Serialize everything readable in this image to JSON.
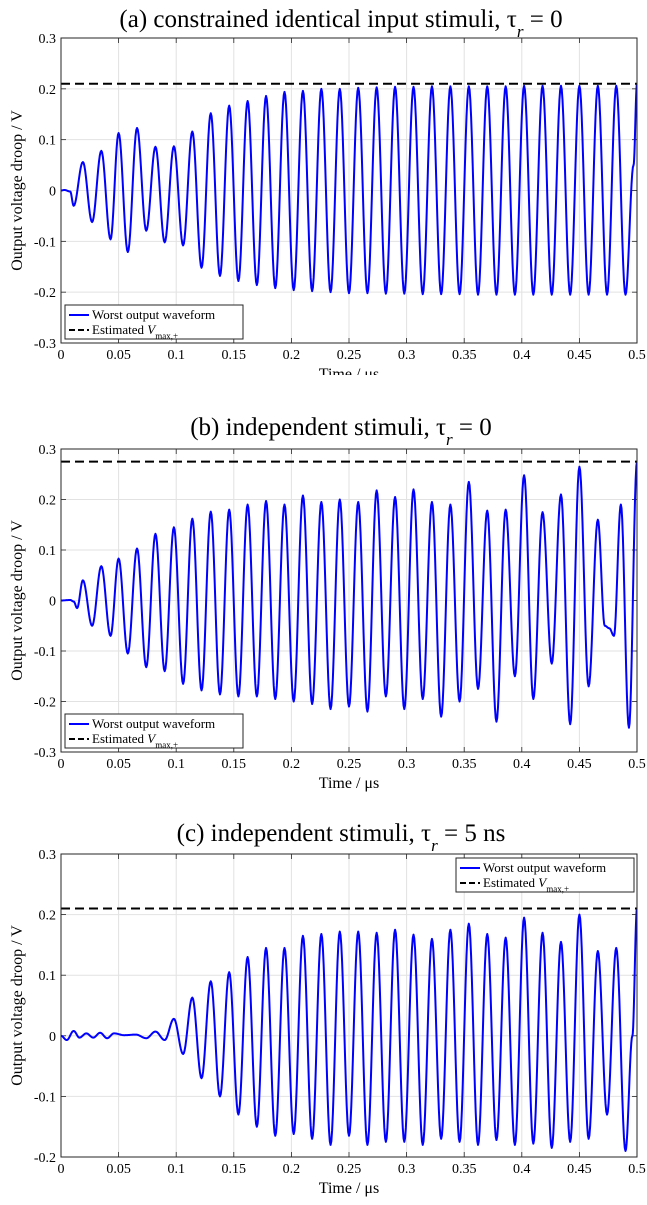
{
  "chart_data": [
    {
      "type": "line",
      "panel": "a",
      "title": "(a) constrained identical input stimuli, τ",
      "title_sub": "r",
      "title_tail": " = 0",
      "xlabel": "Time / μs",
      "ylabel": "Output voltage droop / V",
      "xlim": [
        0,
        0.5
      ],
      "ylim": [
        -0.3,
        0.3
      ],
      "xticks": [
        "0",
        "0.05",
        "0.1",
        "0.15",
        "0.2",
        "0.25",
        "0.3",
        "0.35",
        "0.4",
        "0.45",
        "0.5"
      ],
      "yticks": [
        "-0.3",
        "-0.2",
        "-0.1",
        "0",
        "0.1",
        "0.2",
        "0.3"
      ],
      "grid": true,
      "legend_position": "bottom-left",
      "estimate": 0.21,
      "series": [
        {
          "name": "Worst output waveform",
          "color": "#0000ff",
          "style": "solid",
          "peaks": [
            [
              0,
              0
            ],
            [
              0.003,
              0.001
            ],
            [
              0.008,
              -0.002
            ],
            [
              0.011,
              -0.03
            ],
            [
              0.019,
              0.056
            ],
            [
              0.027,
              -0.062
            ],
            [
              0.035,
              0.078
            ],
            [
              0.043,
              -0.096
            ],
            [
              0.05,
              0.113
            ],
            [
              0.058,
              -0.121
            ],
            [
              0.066,
              0.123
            ],
            [
              0.074,
              -0.079
            ],
            [
              0.082,
              0.086
            ],
            [
              0.09,
              -0.102
            ],
            [
              0.098,
              0.087
            ],
            [
              0.106,
              -0.108
            ],
            [
              0.114,
              0.116
            ],
            [
              0.122,
              -0.152
            ],
            [
              0.13,
              0.152
            ],
            [
              0.138,
              -0.168
            ],
            [
              0.146,
              0.167
            ],
            [
              0.154,
              -0.178
            ],
            [
              0.162,
              0.176
            ],
            [
              0.17,
              -0.186
            ],
            [
              0.178,
              0.186
            ],
            [
              0.186,
              -0.192
            ],
            [
              0.194,
              0.194
            ],
            [
              0.202,
              -0.196
            ],
            [
              0.21,
              0.196
            ],
            [
              0.218,
              -0.198
            ],
            [
              0.226,
              0.2
            ],
            [
              0.234,
              -0.2
            ],
            [
              0.242,
              0.2
            ],
            [
              0.25,
              -0.202
            ],
            [
              0.258,
              0.202
            ],
            [
              0.266,
              -0.202
            ],
            [
              0.274,
              0.203
            ],
            [
              0.282,
              -0.203
            ],
            [
              0.29,
              0.204
            ],
            [
              0.298,
              -0.203
            ],
            [
              0.306,
              0.204
            ],
            [
              0.314,
              -0.204
            ],
            [
              0.322,
              0.205
            ],
            [
              0.33,
              -0.204
            ],
            [
              0.338,
              0.205
            ],
            [
              0.346,
              -0.204
            ],
            [
              0.354,
              0.205
            ],
            [
              0.362,
              -0.205
            ],
            [
              0.37,
              0.205
            ],
            [
              0.378,
              -0.205
            ],
            [
              0.386,
              0.205
            ],
            [
              0.394,
              -0.205
            ],
            [
              0.402,
              0.206
            ],
            [
              0.41,
              -0.205
            ],
            [
              0.418,
              0.206
            ],
            [
              0.426,
              -0.205
            ],
            [
              0.434,
              0.206
            ],
            [
              0.442,
              -0.205
            ],
            [
              0.45,
              0.206
            ],
            [
              0.458,
              -0.205
            ],
            [
              0.466,
              0.206
            ],
            [
              0.474,
              -0.205
            ],
            [
              0.482,
              0.206
            ],
            [
              0.49,
              -0.205
            ],
            [
              0.497,
              0.05
            ],
            [
              0.5,
              0.21
            ]
          ]
        },
        {
          "name": "Estimated V",
          "name_sub": "max,+",
          "color": "#000000",
          "style": "dashed",
          "y": 0.21
        }
      ]
    },
    {
      "type": "line",
      "panel": "b",
      "title": "(b) independent stimuli, τ",
      "title_sub": "r",
      "title_tail": " = 0",
      "xlabel": "Time / μs",
      "ylabel": "Output voltage droop / V",
      "xlim": [
        0,
        0.5
      ],
      "ylim": [
        -0.3,
        0.3
      ],
      "xticks": [
        "0",
        "0.05",
        "0.1",
        "0.15",
        "0.2",
        "0.25",
        "0.3",
        "0.35",
        "0.4",
        "0.45",
        "0.5"
      ],
      "yticks": [
        "-0.3",
        "-0.2",
        "-0.1",
        "0",
        "0.1",
        "0.2",
        "0.3"
      ],
      "grid": true,
      "legend_position": "bottom-left",
      "estimate": 0.275,
      "series": [
        {
          "name": "Worst output waveform",
          "color": "#0000ff",
          "style": "solid",
          "peaks": [
            [
              0,
              0
            ],
            [
              0.008,
              0.001
            ],
            [
              0.011,
              -0.002
            ],
            [
              0.014,
              -0.015
            ],
            [
              0.019,
              0.04
            ],
            [
              0.027,
              -0.05
            ],
            [
              0.035,
              0.068
            ],
            [
              0.043,
              -0.07
            ],
            [
              0.05,
              0.083
            ],
            [
              0.058,
              -0.105
            ],
            [
              0.066,
              0.103
            ],
            [
              0.074,
              -0.132
            ],
            [
              0.082,
              0.132
            ],
            [
              0.09,
              -0.14
            ],
            [
              0.098,
              0.145
            ],
            [
              0.106,
              -0.165
            ],
            [
              0.114,
              0.162
            ],
            [
              0.122,
              -0.178
            ],
            [
              0.13,
              0.176
            ],
            [
              0.138,
              -0.186
            ],
            [
              0.146,
              0.18
            ],
            [
              0.154,
              -0.19
            ],
            [
              0.162,
              0.19
            ],
            [
              0.17,
              -0.19
            ],
            [
              0.178,
              0.197
            ],
            [
              0.186,
              -0.195
            ],
            [
              0.194,
              0.19
            ],
            [
              0.202,
              -0.2
            ],
            [
              0.21,
              0.208
            ],
            [
              0.218,
              -0.205
            ],
            [
              0.226,
              0.195
            ],
            [
              0.234,
              -0.215
            ],
            [
              0.242,
              0.2
            ],
            [
              0.25,
              -0.21
            ],
            [
              0.258,
              0.195
            ],
            [
              0.266,
              -0.22
            ],
            [
              0.274,
              0.218
            ],
            [
              0.282,
              -0.19
            ],
            [
              0.29,
              0.205
            ],
            [
              0.298,
              -0.215
            ],
            [
              0.306,
              0.22
            ],
            [
              0.314,
              -0.195
            ],
            [
              0.322,
              0.195
            ],
            [
              0.33,
              -0.23
            ],
            [
              0.338,
              0.19
            ],
            [
              0.346,
              -0.2
            ],
            [
              0.354,
              0.235
            ],
            [
              0.362,
              -0.175
            ],
            [
              0.37,
              0.178
            ],
            [
              0.378,
              -0.24
            ],
            [
              0.386,
              0.18
            ],
            [
              0.394,
              -0.15
            ],
            [
              0.402,
              0.248
            ],
            [
              0.41,
              -0.195
            ],
            [
              0.418,
              0.175
            ],
            [
              0.426,
              -0.125
            ],
            [
              0.434,
              0.21
            ],
            [
              0.442,
              -0.245
            ],
            [
              0.45,
              0.265
            ],
            [
              0.458,
              -0.17
            ],
            [
              0.466,
              0.16
            ],
            [
              0.472,
              -0.05
            ],
            [
              0.476,
              -0.055
            ],
            [
              0.48,
              -0.07
            ],
            [
              0.486,
              0.19
            ],
            [
              0.493,
              -0.252
            ],
            [
              0.5,
              0.275
            ]
          ]
        },
        {
          "name": "Estimated V",
          "name_sub": "max,+",
          "color": "#000000",
          "style": "dashed",
          "y": 0.275
        }
      ]
    },
    {
      "type": "line",
      "panel": "c",
      "title": "(c) independent stimuli, τ",
      "title_sub": "r",
      "title_tail": " = 5 ns",
      "xlabel": "Time / μs",
      "ylabel": "Output voltage droop / V",
      "xlim": [
        0,
        0.5
      ],
      "ylim": [
        -0.2,
        0.3
      ],
      "xticks": [
        "0",
        "0.05",
        "0.1",
        "0.15",
        "0.2",
        "0.25",
        "0.3",
        "0.35",
        "0.4",
        "0.45",
        "0.5"
      ],
      "yticks": [
        "-0.2",
        "-0.1",
        "0",
        "0.1",
        "0.2",
        "0.3"
      ],
      "grid": true,
      "legend_position": "top-right",
      "estimate": 0.21,
      "series": [
        {
          "name": "Worst output waveform",
          "color": "#0000ff",
          "style": "solid",
          "peaks": [
            [
              0,
              0
            ],
            [
              0.005,
              -0.007
            ],
            [
              0.011,
              0.008
            ],
            [
              0.016,
              -0.003
            ],
            [
              0.022,
              0.004
            ],
            [
              0.028,
              -0.003
            ],
            [
              0.034,
              0.005
            ],
            [
              0.04,
              -0.004
            ],
            [
              0.046,
              0.004
            ],
            [
              0.055,
              0.001
            ],
            [
              0.065,
              0.002
            ],
            [
              0.074,
              -0.004
            ],
            [
              0.082,
              0.007
            ],
            [
              0.09,
              -0.007
            ],
            [
              0.098,
              0.028
            ],
            [
              0.106,
              -0.03
            ],
            [
              0.114,
              0.063
            ],
            [
              0.122,
              -0.07
            ],
            [
              0.13,
              0.09
            ],
            [
              0.138,
              -0.1
            ],
            [
              0.146,
              0.105
            ],
            [
              0.154,
              -0.13
            ],
            [
              0.162,
              0.13
            ],
            [
              0.17,
              -0.15
            ],
            [
              0.178,
              0.145
            ],
            [
              0.186,
              -0.165
            ],
            [
              0.194,
              0.145
            ],
            [
              0.202,
              -0.162
            ],
            [
              0.21,
              0.165
            ],
            [
              0.218,
              -0.17
            ],
            [
              0.226,
              0.168
            ],
            [
              0.234,
              -0.18
            ],
            [
              0.242,
              0.172
            ],
            [
              0.25,
              -0.165
            ],
            [
              0.258,
              0.172
            ],
            [
              0.266,
              -0.18
            ],
            [
              0.274,
              0.17
            ],
            [
              0.282,
              -0.175
            ],
            [
              0.29,
              0.175
            ],
            [
              0.298,
              -0.175
            ],
            [
              0.306,
              0.167
            ],
            [
              0.314,
              -0.18
            ],
            [
              0.322,
              0.16
            ],
            [
              0.33,
              -0.17
            ],
            [
              0.338,
              0.175
            ],
            [
              0.346,
              -0.175
            ],
            [
              0.354,
              0.185
            ],
            [
              0.362,
              -0.18
            ],
            [
              0.37,
              0.168
            ],
            [
              0.378,
              -0.172
            ],
            [
              0.386,
              0.162
            ],
            [
              0.394,
              -0.18
            ],
            [
              0.402,
              0.195
            ],
            [
              0.41,
              -0.178
            ],
            [
              0.418,
              0.17
            ],
            [
              0.426,
              -0.185
            ],
            [
              0.434,
              0.155
            ],
            [
              0.442,
              -0.175
            ],
            [
              0.45,
              0.2
            ],
            [
              0.458,
              -0.17
            ],
            [
              0.466,
              0.14
            ],
            [
              0.474,
              -0.13
            ],
            [
              0.482,
              0.145
            ],
            [
              0.49,
              -0.19
            ],
            [
              0.496,
              0.0
            ],
            [
              0.5,
              0.21
            ]
          ]
        },
        {
          "name": "Estimated V",
          "name_sub": "max,+",
          "color": "#000000",
          "style": "dashed",
          "y": 0.21
        }
      ]
    }
  ]
}
